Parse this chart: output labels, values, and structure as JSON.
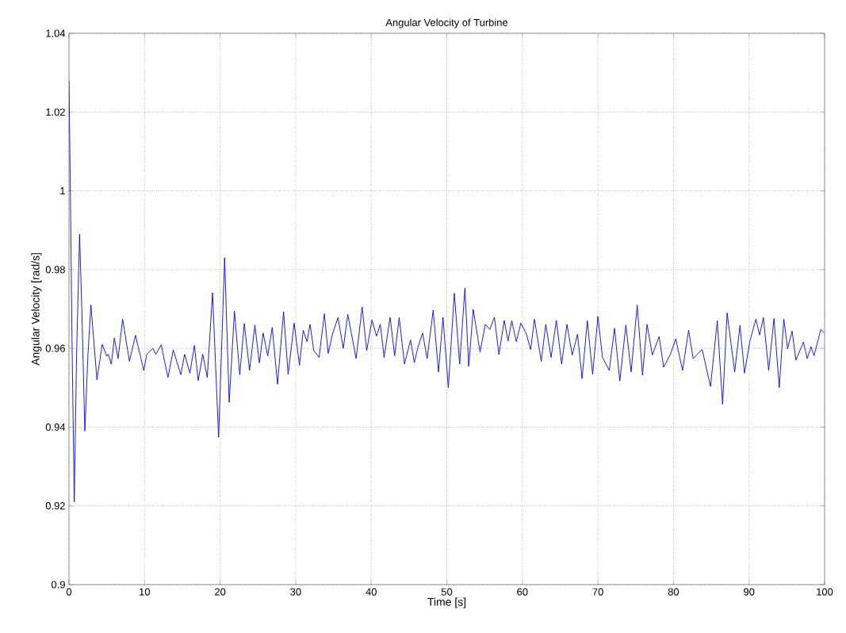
{
  "chart_data": {
    "type": "line",
    "title": "Angular Velocity of Turbine",
    "xlabel": "Time [s]",
    "ylabel": "Angular Velocity [rad/s]",
    "xlim": [
      0,
      100
    ],
    "ylim": [
      0.9,
      1.04
    ],
    "xticks": [
      0,
      10,
      20,
      30,
      40,
      50,
      60,
      70,
      80,
      90,
      100
    ],
    "yticks": [
      {
        "value": 0.9,
        "label": "0.9"
      },
      {
        "value": 0.92,
        "label": "0.92"
      },
      {
        "value": 0.94,
        "label": "0.94"
      },
      {
        "value": 0.96,
        "label": "0.96"
      },
      {
        "value": 0.98,
        "label": "0.98"
      },
      {
        "value": 1.0,
        "label": "1"
      },
      {
        "value": 1.02,
        "label": "1.02"
      },
      {
        "value": 1.04,
        "label": "1.04"
      }
    ],
    "grid": true,
    "line_style": "dotted",
    "series": [
      {
        "color": "#0000ff",
        "line_style": "solid",
        "x": [
          0,
          0.2,
          0.4,
          0.7,
          1.0,
          1.4,
          1.7,
          2.1,
          2.5,
          2.9,
          3.7,
          4.4,
          5.0,
          5.2,
          5.6,
          6.0,
          6.5,
          7.1,
          8.0,
          8.8,
          9.9,
          10.3,
          11.1,
          11.5,
          12.2,
          13.1,
          13.8,
          14.8,
          15.3,
          16.0,
          16.6,
          17.1,
          17.7,
          18.3,
          19.0,
          19.8,
          20.6,
          21.2,
          21.9,
          22.6,
          23.2,
          23.9,
          24.6,
          25.2,
          25.7,
          26.3,
          26.9,
          27.6,
          28.4,
          29.0,
          29.8,
          30.5,
          31.0,
          31.5,
          31.9,
          32.4,
          33.1,
          33.8,
          34.3,
          34.9,
          35.6,
          36.3,
          36.9,
          38.0,
          38.8,
          39.4,
          40.1,
          40.7,
          41.2,
          41.7,
          42.5,
          43.1,
          43.7,
          44.4,
          45.2,
          45.7,
          46.2,
          46.8,
          47.4,
          48.2,
          48.9,
          49.5,
          50.2,
          51.0,
          51.7,
          52.4,
          52.9,
          53.5,
          54.4,
          55.1,
          55.7,
          56.3,
          56.9,
          57.6,
          58.1,
          58.6,
          59.2,
          59.8,
          60.5,
          61.1,
          61.6,
          62.5,
          63.1,
          63.8,
          64.5,
          65.2,
          65.9,
          66.6,
          67.3,
          67.9,
          68.6,
          69.3,
          70.0,
          70.6,
          71.5,
          72.2,
          72.9,
          73.7,
          74.4,
          75.2,
          75.9,
          76.5,
          77.2,
          78.1,
          78.7,
          79.6,
          80.3,
          81.2,
          82.0,
          82.6,
          83.8,
          84.9,
          85.8,
          86.5,
          87.1,
          88.1,
          88.8,
          89.4,
          90.1,
          90.9,
          91.4,
          91.9,
          92.6,
          93.3,
          94.0,
          94.6,
          95.1,
          95.7,
          96.2,
          97.2,
          97.7,
          98.2,
          98.6,
          99.5,
          99.9
        ],
        "values": [
          1.028,
          0.997,
          0.962,
          0.921,
          0.958,
          0.989,
          0.97,
          0.939,
          0.958,
          0.971,
          0.952,
          0.961,
          0.958,
          0.9585,
          0.956,
          0.9626,
          0.9574,
          0.9674,
          0.9567,
          0.9633,
          0.9544,
          0.9585,
          0.96,
          0.9585,
          0.9609,
          0.9526,
          0.9596,
          0.9533,
          0.9585,
          0.9537,
          0.9607,
          0.9518,
          0.9585,
          0.9526,
          0.9741,
          0.9374,
          0.983,
          0.9463,
          0.9694,
          0.9533,
          0.9663,
          0.9544,
          0.9659,
          0.9563,
          0.9639,
          0.9581,
          0.9653,
          0.9509,
          0.9693,
          0.9534,
          0.9664,
          0.9557,
          0.9646,
          0.9617,
          0.9661,
          0.9594,
          0.9577,
          0.9688,
          0.9587,
          0.9638,
          0.9678,
          0.96,
          0.9686,
          0.9574,
          0.9705,
          0.9594,
          0.9672,
          0.9631,
          0.9661,
          0.9577,
          0.9679,
          0.9581,
          0.9678,
          0.956,
          0.9621,
          0.9564,
          0.9604,
          0.9639,
          0.9574,
          0.9697,
          0.954,
          0.9679,
          0.95,
          0.974,
          0.956,
          0.9753,
          0.9554,
          0.9699,
          0.9591,
          0.9661,
          0.9648,
          0.9679,
          0.9584,
          0.9671,
          0.9619,
          0.967,
          0.9617,
          0.9664,
          0.9638,
          0.9597,
          0.9674,
          0.9567,
          0.9661,
          0.9577,
          0.9671,
          0.956,
          0.9661,
          0.9583,
          0.9636,
          0.9523,
          0.967,
          0.9534,
          0.9681,
          0.9577,
          0.9544,
          0.9651,
          0.9517,
          0.9659,
          0.954,
          0.971,
          0.9532,
          0.9661,
          0.9583,
          0.963,
          0.9552,
          0.9585,
          0.9624,
          0.9544,
          0.9646,
          0.9574,
          0.9597,
          0.9503,
          0.967,
          0.9458,
          0.969,
          0.954,
          0.9658,
          0.9537,
          0.9617,
          0.9674,
          0.9634,
          0.9678,
          0.9544,
          0.9676,
          0.95,
          0.9674,
          0.9599,
          0.9644,
          0.957,
          0.9616,
          0.9574,
          0.9604,
          0.9581,
          0.9648,
          0.9639
        ]
      }
    ]
  }
}
